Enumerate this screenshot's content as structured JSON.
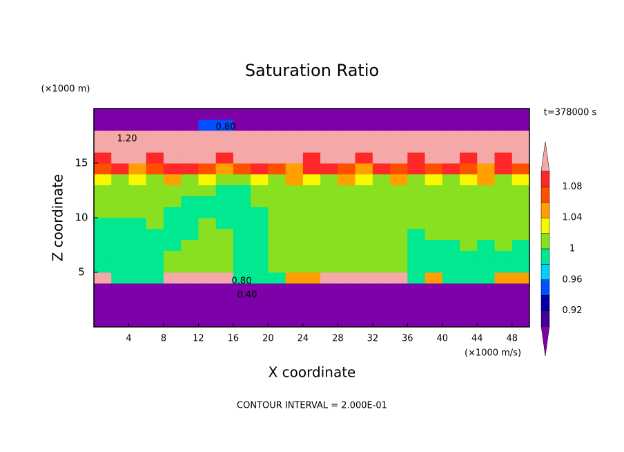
{
  "chart_data": {
    "type": "contour",
    "title": "Saturation Ratio",
    "x_label": "X coordinate",
    "y_label": "Z coordinate",
    "x_unit": "(×1000 m/s)",
    "y_unit": "(×1000 m)",
    "time_label": "t=378000 s",
    "footer": "CONTOUR INTERVAL = 2.000E-01",
    "xlim": [
      0,
      50
    ],
    "ylim": [
      0,
      20
    ],
    "xticks": [
      4,
      8,
      12,
      16,
      20,
      24,
      28,
      32,
      36,
      40,
      44,
      48
    ],
    "yticks": [
      5,
      10,
      15
    ],
    "levels": [
      0.9,
      0.92,
      0.94,
      0.96,
      0.98,
      1,
      1.02,
      1.04,
      1.06,
      1.08,
      1.1
    ],
    "colors": [
      "#7d00a8",
      "#400098",
      "#0000a8",
      "#0050ff",
      "#00d0ff",
      "#00e890",
      "#88e020",
      "#f8f800",
      "#ffa000",
      "#ff5000",
      "#ff2828",
      "#f4a8a8"
    ],
    "colorbar_ticks": [
      0.92,
      0.96,
      1,
      1.04,
      1.08
    ],
    "contour_labels": [
      {
        "value": 0.8,
        "label": "0.80"
      },
      {
        "value": 1.2,
        "label": "1.20"
      },
      {
        "value": 0.8,
        "label": "0.80"
      },
      {
        "value": 0.4,
        "label": "0.40"
      }
    ],
    "field": {
      "x": [
        1,
        3,
        5,
        7,
        9,
        11,
        13,
        15,
        17,
        19,
        21,
        23,
        25,
        27,
        29,
        31,
        33,
        35,
        37,
        39,
        41,
        43,
        45,
        47,
        49
      ],
      "z": [
        0.5,
        1.5,
        2.5,
        3.5,
        4.5,
        5.5,
        6.5,
        7.5,
        8.5,
        9.5,
        10.5,
        11.5,
        12.5,
        13.5,
        14.5,
        15.5,
        16.5,
        17.5,
        18.5,
        19.5
      ],
      "values": [
        [
          0.2,
          0.2,
          0.2,
          0.2,
          0.2,
          0.2,
          0.2,
          0.2,
          0.2,
          0.2,
          0.2,
          0.2,
          0.2,
          0.2,
          0.2,
          0.2,
          0.2,
          0.2,
          0.2,
          0.2,
          0.2,
          0.2,
          0.2,
          0.2,
          0.2
        ],
        [
          0.3,
          0.3,
          0.3,
          0.3,
          0.3,
          0.3,
          0.3,
          0.3,
          0.3,
          0.3,
          0.3,
          0.3,
          0.3,
          0.3,
          0.3,
          0.3,
          0.3,
          0.3,
          0.3,
          0.3,
          0.3,
          0.3,
          0.3,
          0.3,
          0.3
        ],
        [
          0.4,
          0.4,
          0.4,
          0.4,
          0.4,
          0.4,
          0.4,
          0.4,
          0.4,
          0.4,
          0.4,
          0.4,
          0.4,
          0.4,
          0.4,
          0.4,
          0.4,
          0.4,
          0.4,
          0.4,
          0.4,
          0.4,
          0.4,
          0.4,
          0.4
        ],
        [
          0.6,
          0.6,
          0.6,
          0.6,
          0.6,
          0.6,
          0.6,
          0.6,
          0.6,
          0.6,
          0.6,
          0.6,
          0.6,
          0.6,
          0.6,
          0.6,
          0.6,
          0.6,
          0.6,
          0.6,
          0.6,
          0.6,
          0.6,
          0.6,
          0.6
        ],
        [
          1.12,
          0.99,
          0.99,
          0.99,
          1.15,
          1.15,
          1.15,
          1.15,
          0.99,
          0.99,
          0.99,
          1.05,
          1.05,
          1.15,
          1.15,
          1.15,
          1.15,
          1.15,
          0.99,
          1.04,
          0.99,
          0.99,
          0.99,
          1.05,
          1.05
        ],
        [
          0.99,
          0.99,
          0.99,
          0.99,
          1.01,
          1.01,
          1.01,
          1.01,
          0.99,
          0.99,
          1.01,
          1.01,
          1.01,
          1.01,
          1.01,
          1.01,
          1.01,
          1.01,
          0.99,
          0.99,
          0.99,
          0.99,
          0.99,
          0.99,
          0.99
        ],
        [
          0.99,
          0.99,
          0.99,
          0.99,
          1.01,
          1.01,
          1.01,
          1.01,
          0.99,
          0.99,
          1.01,
          1.01,
          1.01,
          1.01,
          1.01,
          1.01,
          1.01,
          1.01,
          0.99,
          0.99,
          0.99,
          0.99,
          0.99,
          0.99,
          0.99
        ],
        [
          0.99,
          0.99,
          0.99,
          0.99,
          0.99,
          1.01,
          1.01,
          1.01,
          0.99,
          0.99,
          1.01,
          1.01,
          1.01,
          1.01,
          1.01,
          1.01,
          1.01,
          1.01,
          0.99,
          0.99,
          0.99,
          1.01,
          0.99,
          1.01,
          0.99
        ],
        [
          0.99,
          0.99,
          0.99,
          0.99,
          0.99,
          0.99,
          1.01,
          1.01,
          0.99,
          0.99,
          1.01,
          1.01,
          1.01,
          1.01,
          1.01,
          1.01,
          1.01,
          1.01,
          0.99,
          1.01,
          1.01,
          1.01,
          1.01,
          1.01,
          1.01
        ],
        [
          0.99,
          0.99,
          0.99,
          1.01,
          0.99,
          0.99,
          1.01,
          0.99,
          0.99,
          0.99,
          1.01,
          1.01,
          1.01,
          1.01,
          1.01,
          1.01,
          1.01,
          1.01,
          1.01,
          1.01,
          1.01,
          1.01,
          1.01,
          1.01,
          1.01
        ],
        [
          1.01,
          1.01,
          1.01,
          1.01,
          0.99,
          0.99,
          0.99,
          0.99,
          0.99,
          0.99,
          1.01,
          1.01,
          1.01,
          1.01,
          1.01,
          1.01,
          1.01,
          1.01,
          1.01,
          1.01,
          1.01,
          1.01,
          1.01,
          1.01,
          1.01
        ],
        [
          1.01,
          1.01,
          1.01,
          1.01,
          1.01,
          0.99,
          0.99,
          0.99,
          0.99,
          1.01,
          1.01,
          1.01,
          1.01,
          1.01,
          1.01,
          1.01,
          1.01,
          1.01,
          1.01,
          1.01,
          1.01,
          1.01,
          1.01,
          1.01,
          1.01
        ],
        [
          1.01,
          1.01,
          1.01,
          1.01,
          1.01,
          1.01,
          1.01,
          0.99,
          0.99,
          1.01,
          1.01,
          1.01,
          1.01,
          1.01,
          1.01,
          1.01,
          1.01,
          1.01,
          1.01,
          1.01,
          1.01,
          1.01,
          1.01,
          1.01,
          1.01
        ],
        [
          1.02,
          1.01,
          1.03,
          1.01,
          1.05,
          1.01,
          1.02,
          1.01,
          1.01,
          1.03,
          1.01,
          1.05,
          1.02,
          1.01,
          1.04,
          1.02,
          1.01,
          1.05,
          1.01,
          1.03,
          1.01,
          1.02,
          1.04,
          1.01,
          1.03
        ],
        [
          1.07,
          1.09,
          1.05,
          1.07,
          1.09,
          1.08,
          1.07,
          1.05,
          1.06,
          1.09,
          1.07,
          1.05,
          1.08,
          1.09,
          1.07,
          1.05,
          1.09,
          1.07,
          1.08,
          1.06,
          1.09,
          1.07,
          1.05,
          1.08,
          1.07
        ],
        [
          1.09,
          1.15,
          1.12,
          1.09,
          1.15,
          1.15,
          1.12,
          1.09,
          1.15,
          1.12,
          1.15,
          1.12,
          1.09,
          1.15,
          1.12,
          1.09,
          1.15,
          1.12,
          1.09,
          1.12,
          1.15,
          1.09,
          1.12,
          1.09,
          1.12
        ],
        [
          1.15,
          1.15,
          1.15,
          1.15,
          1.15,
          1.15,
          1.15,
          1.15,
          1.15,
          1.15,
          1.15,
          1.15,
          1.15,
          1.15,
          1.15,
          1.15,
          1.15,
          1.15,
          1.15,
          1.15,
          1.15,
          1.15,
          1.15,
          1.15,
          1.15
        ],
        [
          1.15,
          1.15,
          1.15,
          1.15,
          1.15,
          1.15,
          1.15,
          1.15,
          1.15,
          1.15,
          1.15,
          1.15,
          1.15,
          1.15,
          1.15,
          1.15,
          1.15,
          1.15,
          1.15,
          1.15,
          1.15,
          1.15,
          1.15,
          1.15,
          1.15
        ],
        [
          0.8,
          0.8,
          0.8,
          0.8,
          0.8,
          0.8,
          0.95,
          0.95,
          0.8,
          0.8,
          0.8,
          0.8,
          0.8,
          0.8,
          0.8,
          0.8,
          0.8,
          0.8,
          0.8,
          0.8,
          0.8,
          0.8,
          0.8,
          0.8,
          0.8
        ],
        [
          0.7,
          0.7,
          0.7,
          0.7,
          0.7,
          0.7,
          0.7,
          0.7,
          0.7,
          0.7,
          0.7,
          0.7,
          0.7,
          0.7,
          0.7,
          0.7,
          0.7,
          0.7,
          0.7,
          0.7,
          0.7,
          0.7,
          0.7,
          0.7,
          0.7
        ]
      ]
    }
  }
}
